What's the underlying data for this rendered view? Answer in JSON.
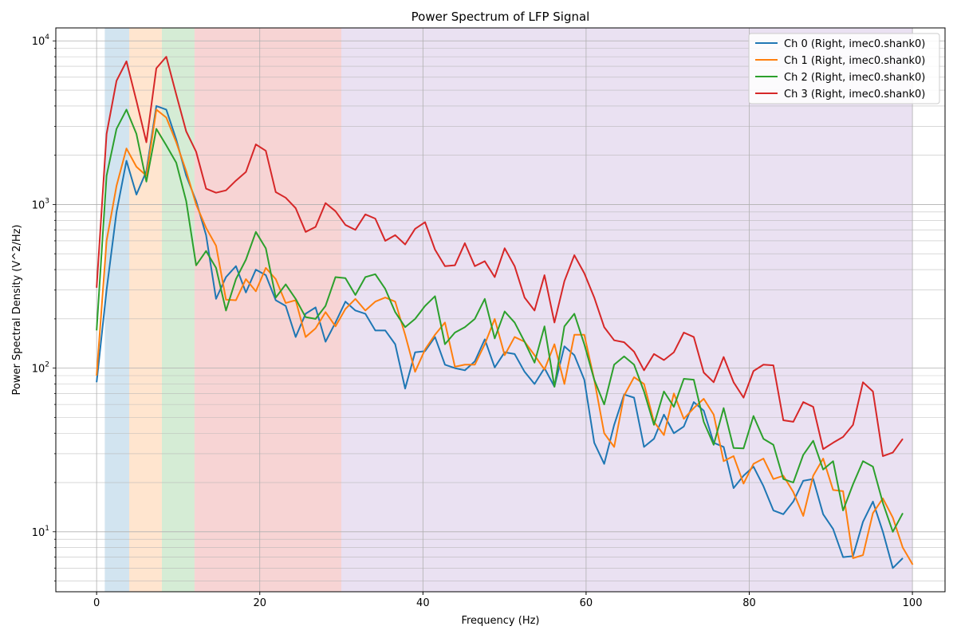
{
  "chart_data": {
    "type": "line",
    "title": "Power Spectrum of LFP Signal",
    "xlabel": "Frequency (Hz)",
    "ylabel": "Power Spectral Density (V^2/Hz)",
    "xlim": [
      -5,
      104
    ],
    "ylim": [
      4.3,
      12000
    ],
    "yscale": "log",
    "grid": true,
    "legend_position": "top-right",
    "xticks": [
      0,
      20,
      40,
      60,
      80,
      100
    ],
    "yticks": [
      {
        "value": 10,
        "mantissa": "10",
        "exp": "1"
      },
      {
        "value": 100,
        "mantissa": "10",
        "exp": "2"
      },
      {
        "value": 1000,
        "mantissa": "10",
        "exp": "3"
      },
      {
        "value": 10000,
        "mantissa": "10",
        "exp": "4"
      }
    ],
    "bands": [
      {
        "from": 1,
        "to": 4,
        "color": "#1f77b4"
      },
      {
        "from": 4,
        "to": 8,
        "color": "#ff7f0e"
      },
      {
        "from": 8,
        "to": 12,
        "color": "#2ca02c"
      },
      {
        "from": 12,
        "to": 30,
        "color": "#d62728"
      },
      {
        "from": 30,
        "to": 100,
        "color": "#9467bd"
      }
    ],
    "x_start": 0,
    "x_step": 1.22,
    "series": [
      {
        "name": "Ch 0 (Right, imec0.shank0)",
        "color": "#1f77b4",
        "values": [
          82,
          300,
          900,
          1850,
          1150,
          1600,
          4000,
          3800,
          2500,
          1500,
          1050,
          650,
          265,
          360,
          420,
          290,
          400,
          370,
          260,
          240,
          155,
          215,
          235,
          145,
          190,
          255,
          225,
          215,
          170,
          170,
          140,
          75,
          125,
          127,
          155,
          105,
          100,
          97,
          110,
          150,
          101,
          125,
          122,
          95,
          80,
          100,
          77,
          136,
          120,
          85,
          35,
          26,
          45,
          69,
          66,
          33,
          37,
          52,
          40,
          44,
          62,
          55,
          35,
          33,
          18.5,
          22,
          25,
          19,
          13.5,
          12.8,
          15.3,
          20.5,
          21,
          12.8,
          10.4,
          7,
          7.1,
          11.5,
          15.3,
          10,
          6,
          6.9
        ]
      },
      {
        "name": "Ch 1 (Right, imec0.shank0)",
        "color": "#ff7f0e",
        "values": [
          90,
          600,
          1300,
          2200,
          1700,
          1500,
          3800,
          3400,
          2400,
          1600,
          1000,
          720,
          560,
          262,
          260,
          350,
          295,
          410,
          350,
          250,
          260,
          155,
          175,
          220,
          180,
          230,
          265,
          225,
          255,
          270,
          255,
          160,
          95,
          130,
          160,
          190,
          102,
          105,
          105,
          140,
          200,
          120,
          155,
          145,
          120,
          98,
          140,
          80,
          160,
          160,
          85,
          40,
          33,
          68,
          88,
          80,
          47,
          39,
          70,
          49,
          57,
          65,
          52,
          27,
          29,
          19.7,
          26,
          28,
          21,
          22,
          17.5,
          12.5,
          22,
          28,
          18,
          17.7,
          6.9,
          7.2,
          13,
          16,
          12.2,
          8,
          6.3
        ]
      },
      {
        "name": "Ch 2 (Right, imec0.shank0)",
        "color": "#2ca02c",
        "values": [
          170,
          1500,
          2900,
          3800,
          2700,
          1380,
          2900,
          2300,
          1800,
          1050,
          425,
          520,
          410,
          225,
          350,
          460,
          680,
          540,
          270,
          325,
          265,
          205,
          200,
          240,
          360,
          355,
          280,
          360,
          375,
          305,
          220,
          178,
          200,
          240,
          275,
          140,
          165,
          178,
          200,
          265,
          152,
          222,
          190,
          145,
          108,
          180,
          77,
          180,
          215,
          140,
          85,
          60,
          105,
          118,
          105,
          72,
          45,
          72,
          58,
          86,
          85,
          47,
          34,
          57,
          32.5,
          32.3,
          51,
          37,
          34,
          21,
          20,
          29.5,
          36,
          24,
          27,
          13.5,
          19.5,
          27,
          25,
          15,
          10,
          13
        ]
      },
      {
        "name": "Ch 3 (Right, imec0.shank0)",
        "color": "#d62728",
        "values": [
          310,
          2700,
          5700,
          7500,
          4300,
          2400,
          6800,
          8000,
          4700,
          2800,
          2100,
          1250,
          1180,
          1220,
          1400,
          1580,
          2330,
          2130,
          1190,
          1100,
          950,
          680,
          730,
          1020,
          910,
          750,
          700,
          870,
          820,
          600,
          650,
          570,
          710,
          780,
          530,
          420,
          425,
          580,
          420,
          450,
          360,
          540,
          420,
          270,
          225,
          370,
          190,
          340,
          490,
          380,
          270,
          178,
          148,
          144,
          126,
          97,
          122,
          112,
          125,
          165,
          155,
          94,
          82,
          117,
          82,
          66,
          96,
          105,
          104,
          48,
          47,
          62,
          58,
          32,
          35,
          38,
          45,
          82,
          72,
          29,
          30.5,
          37
        ]
      }
    ]
  }
}
